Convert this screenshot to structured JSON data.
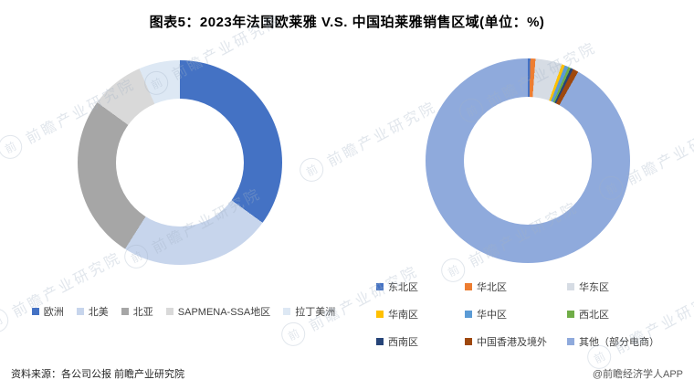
{
  "title": "图表5：2023年法国欧莱雅 V.S. 中国珀莱雅销售区域(单位：%)",
  "footer": {
    "source": "资料来源：各公司公报 前瞻产业研究院",
    "credit": "@前瞻经济学人APP"
  },
  "watermark": {
    "logo_char": "前",
    "text": "前瞻产业研究院"
  },
  "chart_data": [
    {
      "type": "pie",
      "variant": "donut",
      "position": "left",
      "legend_position": "bottom",
      "categories": [
        "欧洲",
        "北美",
        "北亚",
        "SAPMENA-SSA地区",
        "拉丁美洲"
      ],
      "values": [
        35,
        24,
        26,
        8.5,
        6.5
      ],
      "colors": [
        "#4472c4",
        "#c7d5ec",
        "#a6a6a6",
        "#d9d9d9",
        "#dde8f4"
      ]
    },
    {
      "type": "pie",
      "variant": "donut",
      "position": "right",
      "legend_position": "bottom",
      "categories": [
        "东北区",
        "华北区",
        "华东区",
        "华南区",
        "华中区",
        "西北区",
        "西南区",
        "中国香港及境外",
        "其他（部分电商）"
      ],
      "values": [
        0.4,
        0.8,
        4.2,
        0.5,
        0.6,
        0.4,
        0.4,
        0.9,
        91.8
      ],
      "colors": [
        "#4472c4",
        "#ed7d31",
        "#d6dce4",
        "#ffc000",
        "#5b9bd5",
        "#70ad47",
        "#264478",
        "#9e480e",
        "#8faadc"
      ]
    }
  ]
}
